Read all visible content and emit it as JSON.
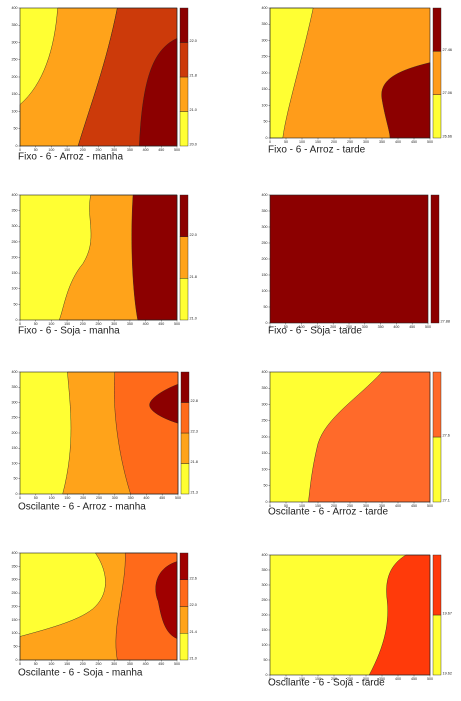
{
  "chart_data": [
    {
      "type": "contour",
      "title": "Fixo - 6 - Arroz - manha",
      "xlim": [
        0,
        500
      ],
      "ylim": [
        0,
        400
      ],
      "xticks": [
        0,
        50,
        100,
        150,
        200,
        250,
        300,
        350,
        400,
        450,
        500
      ],
      "yticks": [
        0,
        50,
        100,
        150,
        200,
        250,
        300,
        350,
        400
      ],
      "levels": [
        {
          "value": 20,
          "label": "20.0"
        },
        {
          "value": 21,
          "label": "21.0"
        },
        {
          "value": 21.8,
          "label": "21.8"
        },
        {
          "value": 22,
          "label": "22.0"
        }
      ],
      "colors": [
        "#ffff33",
        "#ffa31a",
        "#cc3a0a",
        "#8c0000"
      ]
    },
    {
      "type": "contour",
      "title": "Fixo - 6 - Arroz - tarde",
      "xlim": [
        0,
        500
      ],
      "ylim": [
        0,
        400
      ],
      "xticks": [
        0,
        50,
        100,
        150,
        200,
        250,
        300,
        350,
        400,
        450,
        500
      ],
      "yticks": [
        0,
        50,
        100,
        150,
        200,
        250,
        300,
        350,
        400
      ],
      "levels": [
        26.66,
        27.06,
        27.46
      ],
      "colors": [
        "#ffff33",
        "#ff9c1a",
        "#8c0000"
      ]
    },
    {
      "type": "contour",
      "title": "Fixo - 6 - Soja - manha",
      "xlim": [
        0,
        500
      ],
      "ylim": [
        0,
        400
      ],
      "xticks": [
        0,
        50,
        100,
        150,
        200,
        250,
        300,
        350,
        400,
        450,
        500
      ],
      "yticks": [
        0,
        50,
        100,
        150,
        200,
        250,
        300,
        350,
        400
      ],
      "levels": [
        {
          "value": 21,
          "label": "21.0"
        },
        21.8,
        {
          "value": 22,
          "label": "22.0"
        }
      ],
      "colors": [
        "#ffff33",
        "#ffa31a",
        "#8c0000"
      ]
    },
    {
      "type": "contour",
      "title": "Fixo - 6 - Soja - tarde",
      "xlim": [
        0,
        500
      ],
      "ylim": [
        0,
        400
      ],
      "xticks": [
        0,
        50,
        100,
        150,
        200,
        250,
        300,
        350,
        400,
        450,
        500
      ],
      "yticks": [
        0,
        50,
        100,
        150,
        200,
        250,
        300,
        350,
        400
      ],
      "levels": [
        27.88
      ],
      "colors": [
        "#8c0000"
      ]
    },
    {
      "type": "contour",
      "title": "Oscilante - 6 - Arroz - manha",
      "xlim": [
        0,
        500
      ],
      "ylim": [
        0,
        400
      ],
      "xticks": [
        0,
        50,
        100,
        150,
        200,
        250,
        300,
        350,
        400,
        450,
        500
      ],
      "yticks": [
        0,
        50,
        100,
        150,
        200,
        250,
        300,
        350,
        400
      ],
      "levels": [
        21.3,
        21.8,
        22.3,
        22.8
      ],
      "colors": [
        "#ffff33",
        "#ffa31a",
        "#ff6a1a",
        "#8c0000"
      ]
    },
    {
      "type": "contour",
      "title": "Oscilante - 6 - Arroz - tarde",
      "xlim": [
        0,
        500
      ],
      "ylim": [
        0,
        400
      ],
      "xticks": [
        0,
        50,
        100,
        150,
        200,
        250,
        300,
        350,
        400,
        450,
        500
      ],
      "yticks": [
        0,
        50,
        100,
        150,
        200,
        250,
        300,
        350,
        400
      ],
      "levels": [
        27.1,
        27.6
      ],
      "colors": [
        "#ffff33",
        "#ff6a2a"
      ]
    },
    {
      "type": "contour",
      "title": "Oscilante - 6 - Soja - manha",
      "xlim": [
        0,
        500
      ],
      "ylim": [
        0,
        400
      ],
      "xticks": [
        0,
        50,
        100,
        150,
        200,
        250,
        300,
        350,
        400,
        450,
        500
      ],
      "yticks": [
        0,
        50,
        100,
        150,
        200,
        250,
        300,
        350,
        400
      ],
      "levels": [
        {
          "value": 21,
          "label": "21.0"
        },
        21.4,
        {
          "value": 22,
          "label": "22.0"
        },
        22.6
      ],
      "colors": [
        "#ffff33",
        "#ffa31a",
        "#ff6a1a",
        "#a00000"
      ]
    },
    {
      "type": "contour",
      "title": "Oscilante - 6 - Soja - tarde",
      "xlim": [
        0,
        500
      ],
      "ylim": [
        0,
        400
      ],
      "xticks": [
        0,
        50,
        100,
        150,
        200,
        250,
        300,
        350,
        400,
        450,
        500
      ],
      "yticks": [
        0,
        50,
        100,
        150,
        200,
        250,
        300,
        350,
        400
      ],
      "levels": [
        19.62,
        19.67
      ],
      "colors": [
        "#ffff33",
        "#ff3a0a"
      ]
    }
  ]
}
